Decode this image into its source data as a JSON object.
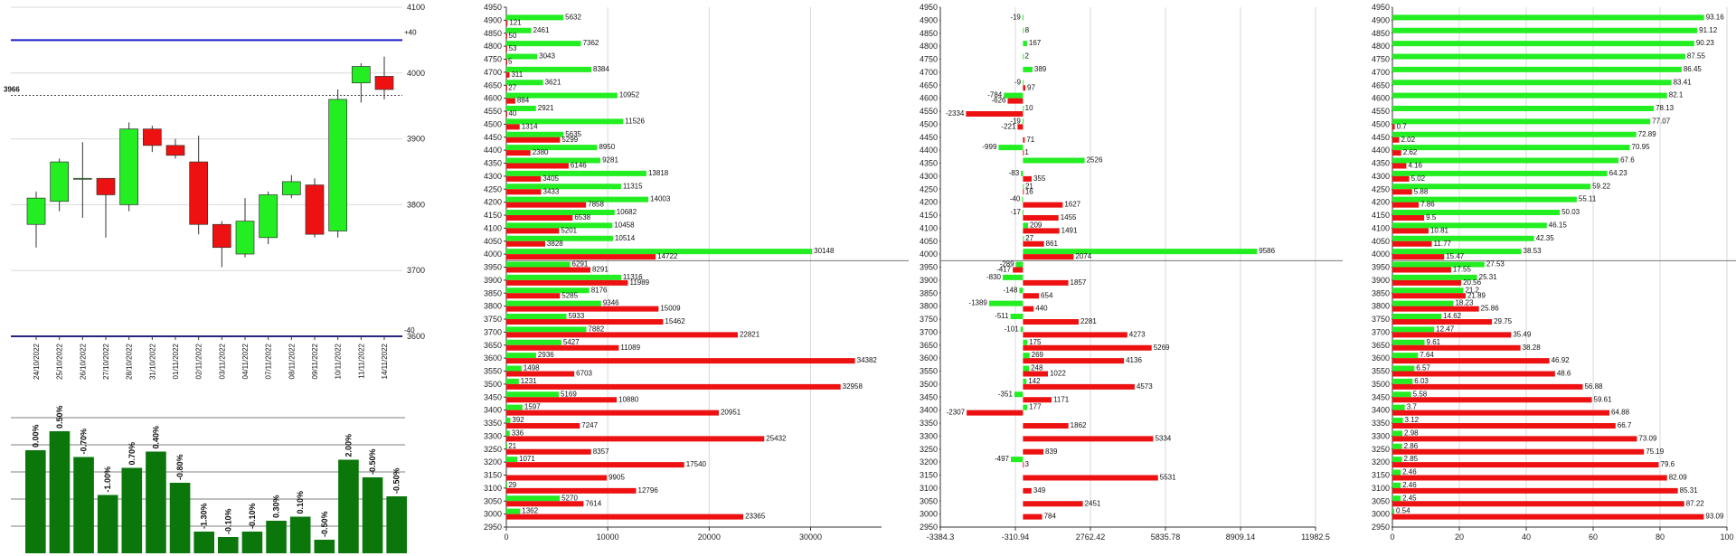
{
  "colors": {
    "green": "#22ee22",
    "red": "#ee1111",
    "darkgreen": "#0b770b",
    "blue": "#1a1acc",
    "grid": "#d8d8d8",
    "axis": "#333333"
  },
  "chart_data": [
    {
      "type": "candlestick",
      "ylim": [
        3600,
        4100
      ],
      "y_ticks": [
        "3600",
        "3700",
        "3800",
        "3900",
        "4000",
        "4100"
      ],
      "upper_band": {
        "value": 4050,
        "label": "+40"
      },
      "lower_band": {
        "value": 3600,
        "label": "-40"
      },
      "current_price": {
        "value": 3966,
        "label": "3966"
      },
      "dates": [
        "24/10/2022",
        "25/10/2022",
        "26/10/2022",
        "27/10/2022",
        "28/10/2022",
        "31/10/2022",
        "01/11/2022",
        "02/11/2022",
        "03/11/2022",
        "04/11/2022",
        "07/11/2022",
        "08/11/2022",
        "09/11/2022",
        "10/11/2022",
        "11/11/2022",
        "14/11/2022"
      ],
      "ohlc": [
        [
          3770,
          3820,
          3735,
          3810
        ],
        [
          3805,
          3870,
          3790,
          3865
        ],
        [
          3840,
          3895,
          3780,
          3840
        ],
        [
          3840,
          3835,
          3750,
          3815
        ],
        [
          3800,
          3925,
          3790,
          3915
        ],
        [
          3915,
          3920,
          3880,
          3890
        ],
        [
          3890,
          3900,
          3870,
          3875
        ],
        [
          3865,
          3905,
          3755,
          3770
        ],
        [
          3770,
          3775,
          3705,
          3735
        ],
        [
          3725,
          3810,
          3720,
          3775
        ],
        [
          3750,
          3820,
          3740,
          3815
        ],
        [
          3815,
          3845,
          3810,
          3835
        ],
        [
          3830,
          3840,
          3750,
          3755
        ],
        [
          3760,
          3975,
          3750,
          3960
        ],
        [
          3985,
          4015,
          3955,
          4010
        ],
        [
          3995,
          4025,
          3960,
          3975
        ]
      ]
    },
    {
      "type": "bar",
      "labels": [
        "0.00%",
        "0.50%",
        "-0.70%",
        "-1.00%",
        "0.70%",
        "0.40%",
        "-0.80%",
        "-1.30%",
        "-0.10%",
        "-0.10%",
        "0.30%",
        "0.10%",
        "-0.50%",
        "2.00%",
        "-0.50%",
        "-0.50%"
      ],
      "heights": [
        0.76,
        0.9,
        0.71,
        0.43,
        0.63,
        0.75,
        0.52,
        0.16,
        0.12,
        0.16,
        0.24,
        0.27,
        0.1,
        0.69,
        0.56,
        0.42
      ]
    },
    {
      "type": "bar",
      "orientation": "horizontal",
      "categories": [
        4950,
        4900,
        4850,
        4800,
        4750,
        4700,
        4650,
        4600,
        4550,
        4500,
        4450,
        4400,
        4350,
        4300,
        4250,
        4200,
        4150,
        4100,
        4050,
        4000,
        3950,
        3900,
        3850,
        3800,
        3750,
        3700,
        3650,
        3600,
        3550,
        3500,
        3450,
        3400,
        3350,
        3300,
        3250,
        3200,
        3150,
        3100,
        3050,
        3000,
        2950
      ],
      "series": [
        {
          "color": "green",
          "values": [
            null,
            5632,
            2461,
            7362,
            3043,
            8384,
            3621,
            10952,
            2921,
            11526,
            5635,
            8950,
            9281,
            13818,
            11315,
            14003,
            10682,
            10458,
            10514,
            30148,
            6291,
            11316,
            8176,
            9346,
            5933,
            7882,
            5427,
            2936,
            1498,
            1231,
            5169,
            1597,
            392,
            336,
            21,
            1071,
            null,
            29,
            5270,
            1362,
            null
          ]
        },
        {
          "color": "red",
          "values": [
            null,
            121,
            50,
            53,
            5,
            311,
            27,
            884,
            40,
            1314,
            5299,
            2380,
            6146,
            3405,
            3433,
            7858,
            6538,
            5201,
            3828,
            14722,
            8291,
            11989,
            5285,
            15009,
            15462,
            22821,
            11089,
            34382,
            6703,
            32958,
            10880,
            20951,
            7247,
            25432,
            8357,
            17540,
            9905,
            12796,
            7614,
            23365,
            null
          ]
        }
      ],
      "xlim": [
        0,
        37000
      ],
      "x_ticks": [
        "0",
        "10000",
        "20000",
        "30000"
      ],
      "divider_after": 4000
    },
    {
      "type": "bar",
      "orientation": "horizontal",
      "categories": [
        4950,
        4900,
        4850,
        4800,
        4750,
        4700,
        4650,
        4600,
        4550,
        4500,
        4450,
        4400,
        4350,
        4300,
        4250,
        4200,
        4150,
        4100,
        4050,
        4000,
        3950,
        3900,
        3850,
        3800,
        3750,
        3700,
        3650,
        3600,
        3550,
        3500,
        3450,
        3400,
        3350,
        3300,
        3250,
        3200,
        3150,
        3100,
        3050,
        3000,
        2950
      ],
      "series": [
        {
          "color": "green",
          "values": [
            null,
            -19,
            8,
            167,
            2,
            389,
            -9,
            -784,
            null,
            -19,
            null,
            -999,
            2526,
            -83,
            21,
            -40,
            -17,
            null,
            null,
            9586,
            -289,
            -830,
            -148,
            -1389,
            -511,
            -101,
            null,
            null,
            null,
            null,
            -351,
            null,
            null,
            null,
            null,
            null,
            null,
            null,
            null,
            null,
            null
          ]
        },
        {
          "color": "red",
          "values": [
            null,
            null,
            null,
            null,
            null,
            null,
            97,
            -626,
            -2334,
            -221,
            71,
            1,
            null,
            355,
            16,
            1627,
            1455,
            1491,
            861,
            2074,
            -417,
            1857,
            654,
            440,
            2281,
            4273,
            5269,
            4136,
            1022,
            4573,
            1171,
            -2307,
            1862,
            5334,
            839,
            3,
            5531,
            349,
            2451,
            784,
            null
          ]
        },
        {
          "color": "green",
          "values": [
            null,
            null,
            null,
            null,
            null,
            null,
            null,
            null,
            10,
            null,
            null,
            null,
            null,
            null,
            null,
            null,
            null,
            209,
            27,
            null,
            null,
            null,
            null,
            null,
            null,
            null,
            175,
            269,
            248,
            142,
            null,
            177,
            null,
            null,
            null,
            -497,
            null,
            null,
            null,
            null,
            null
          ]
        }
      ],
      "xlim": [
        -3384.3,
        11982.5
      ],
      "x_ticks": [
        "-3384.3",
        "-310.94",
        "2762.42",
        "5835.78",
        "8909.14",
        "11982.5"
      ],
      "divider_after": 4000
    },
    {
      "type": "bar",
      "orientation": "horizontal",
      "categories": [
        4950,
        4900,
        4850,
        4800,
        4750,
        4700,
        4650,
        4600,
        4550,
        4500,
        4450,
        4400,
        4350,
        4300,
        4250,
        4200,
        4150,
        4100,
        4050,
        4000,
        3950,
        3900,
        3850,
        3800,
        3750,
        3700,
        3650,
        3600,
        3550,
        3500,
        3450,
        3400,
        3350,
        3300,
        3250,
        3200,
        3150,
        3100,
        3050,
        3000,
        2950
      ],
      "series": [
        {
          "color": "green",
          "values": [
            null,
            93.16,
            91.12,
            90.23,
            87.55,
            86.45,
            83.41,
            82.1,
            78.13,
            77.07,
            72.89,
            70.95,
            67.6,
            64.23,
            59.22,
            55.11,
            50.03,
            46.15,
            42.35,
            38.53,
            27.53,
            25.31,
            21.2,
            18.23,
            14.62,
            12.47,
            9.61,
            7.64,
            6.57,
            6.03,
            5.58,
            3.7,
            3.12,
            2.98,
            2.86,
            2.85,
            2.46,
            2.46,
            2.45,
            0.54,
            null
          ]
        },
        {
          "color": "red",
          "values": [
            null,
            null,
            null,
            null,
            null,
            null,
            null,
            null,
            null,
            0.7,
            2.02,
            2.62,
            4.16,
            5.02,
            5.88,
            7.86,
            9.5,
            10.81,
            11.77,
            15.47,
            17.55,
            20.56,
            21.89,
            25.86,
            29.75,
            35.49,
            38.28,
            46.92,
            48.6,
            56.88,
            59.61,
            64.88,
            66.7,
            73.09,
            75.19,
            79.6,
            82.09,
            85.31,
            87.22,
            93.09,
            null
          ]
        }
      ],
      "xlim": [
        0,
        100
      ],
      "x_ticks": [
        "0",
        "20",
        "40",
        "60",
        "80",
        "100"
      ],
      "divider_after": 4000
    }
  ]
}
